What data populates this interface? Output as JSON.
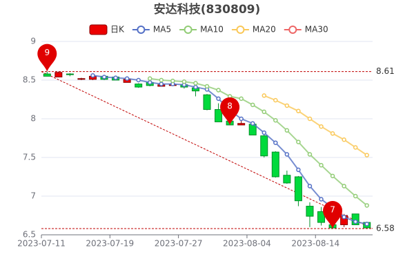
{
  "chart_data": {
    "type": "candlestick",
    "title": "安达科技(830809)",
    "categories": [
      "2023-07-11",
      null,
      null,
      null,
      null,
      null,
      "2023-07-19",
      null,
      null,
      null,
      null,
      null,
      "2023-07-27",
      null,
      null,
      null,
      null,
      null,
      "2023-08-04",
      null,
      null,
      null,
      null,
      null,
      "2023-08-14",
      null,
      null,
      null,
      null
    ],
    "candles": {
      "name": "日K",
      "up_color": "#ec0000",
      "down_color": "#00da3c",
      "open": [
        8.58,
        8.54,
        8.58,
        8.51,
        8.51,
        8.55,
        8.54,
        8.47,
        8.45,
        8.47,
        8.42,
        8.43,
        8.44,
        8.4,
        8.31,
        8.12,
        7.97,
        7.92,
        7.93,
        7.78,
        7.57,
        7.27,
        7.25,
        6.87,
        6.8,
        6.63,
        6.63,
        6.77,
        6.66
      ],
      "close": [
        8.55,
        8.6,
        8.57,
        8.52,
        8.55,
        8.51,
        8.5,
        8.51,
        8.41,
        8.43,
        8.44,
        8.44,
        8.41,
        8.36,
        8.12,
        7.96,
        7.92,
        7.94,
        7.79,
        7.52,
        7.25,
        7.17,
        6.94,
        6.74,
        6.66,
        6.59,
        6.75,
        6.63,
        6.59
      ],
      "high": [
        8.61,
        8.61,
        8.59,
        8.53,
        8.57,
        8.56,
        8.55,
        8.52,
        8.46,
        8.48,
        8.45,
        8.45,
        8.45,
        8.41,
        8.32,
        8.2,
        8.03,
        8.0,
        7.95,
        7.8,
        7.58,
        7.33,
        7.26,
        6.92,
        6.86,
        6.68,
        6.77,
        6.77,
        6.67
      ],
      "low": [
        8.55,
        8.54,
        8.55,
        8.5,
        8.5,
        8.5,
        8.5,
        8.47,
        8.4,
        8.42,
        8.42,
        8.43,
        8.39,
        8.29,
        8.11,
        7.96,
        7.92,
        7.92,
        7.79,
        7.5,
        7.24,
        7.16,
        6.87,
        6.6,
        6.62,
        6.58,
        6.6,
        6.63,
        6.59
      ]
    },
    "series": [
      {
        "name": "MA5",
        "color": "#5470c6",
        "values": [
          null,
          null,
          null,
          null,
          8.56,
          8.54,
          8.53,
          8.52,
          8.5,
          8.47,
          8.45,
          8.45,
          8.44,
          8.41,
          8.38,
          8.26,
          8.11,
          8.0,
          7.94,
          7.82,
          7.69,
          7.54,
          7.34,
          7.13,
          6.96,
          6.85,
          6.73,
          6.67,
          6.64
        ]
      },
      {
        "name": "MA10",
        "color": "#91cc75",
        "values": [
          null,
          null,
          null,
          null,
          null,
          null,
          null,
          null,
          null,
          8.52,
          8.5,
          8.49,
          8.48,
          8.46,
          8.42,
          8.37,
          8.29,
          8.26,
          8.18,
          8.09,
          7.98,
          7.85,
          7.7,
          7.54,
          7.4,
          7.26,
          7.13,
          7.0,
          6.88
        ]
      },
      {
        "name": "MA20",
        "color": "#fac858",
        "values": [
          null,
          null,
          null,
          null,
          null,
          null,
          null,
          null,
          null,
          null,
          null,
          null,
          null,
          null,
          null,
          null,
          null,
          null,
          null,
          8.3,
          8.24,
          8.17,
          8.1,
          8.0,
          7.9,
          7.81,
          7.73,
          7.63,
          7.53
        ]
      },
      {
        "name": "MA30",
        "color": "#ee6666",
        "values": [
          null,
          null,
          null,
          null,
          null,
          null,
          null,
          null,
          null,
          null,
          null,
          null,
          null,
          null,
          null,
          null,
          null,
          null,
          null,
          null,
          null,
          null,
          null,
          null,
          null,
          null,
          null,
          null,
          null
        ]
      }
    ],
    "mark_lines": [
      8.61,
      6.58
    ],
    "mark_points": [
      {
        "label": "9",
        "value": 8.61
      },
      {
        "label": "8",
        "value": 7.92
      },
      {
        "label": "7",
        "value": 6.58
      }
    ],
    "pin_color": "#e00000",
    "ylim": [
      6.5,
      9
    ],
    "yticks": [
      6.5,
      7,
      7.5,
      8,
      8.5,
      9
    ],
    "grid": true
  }
}
